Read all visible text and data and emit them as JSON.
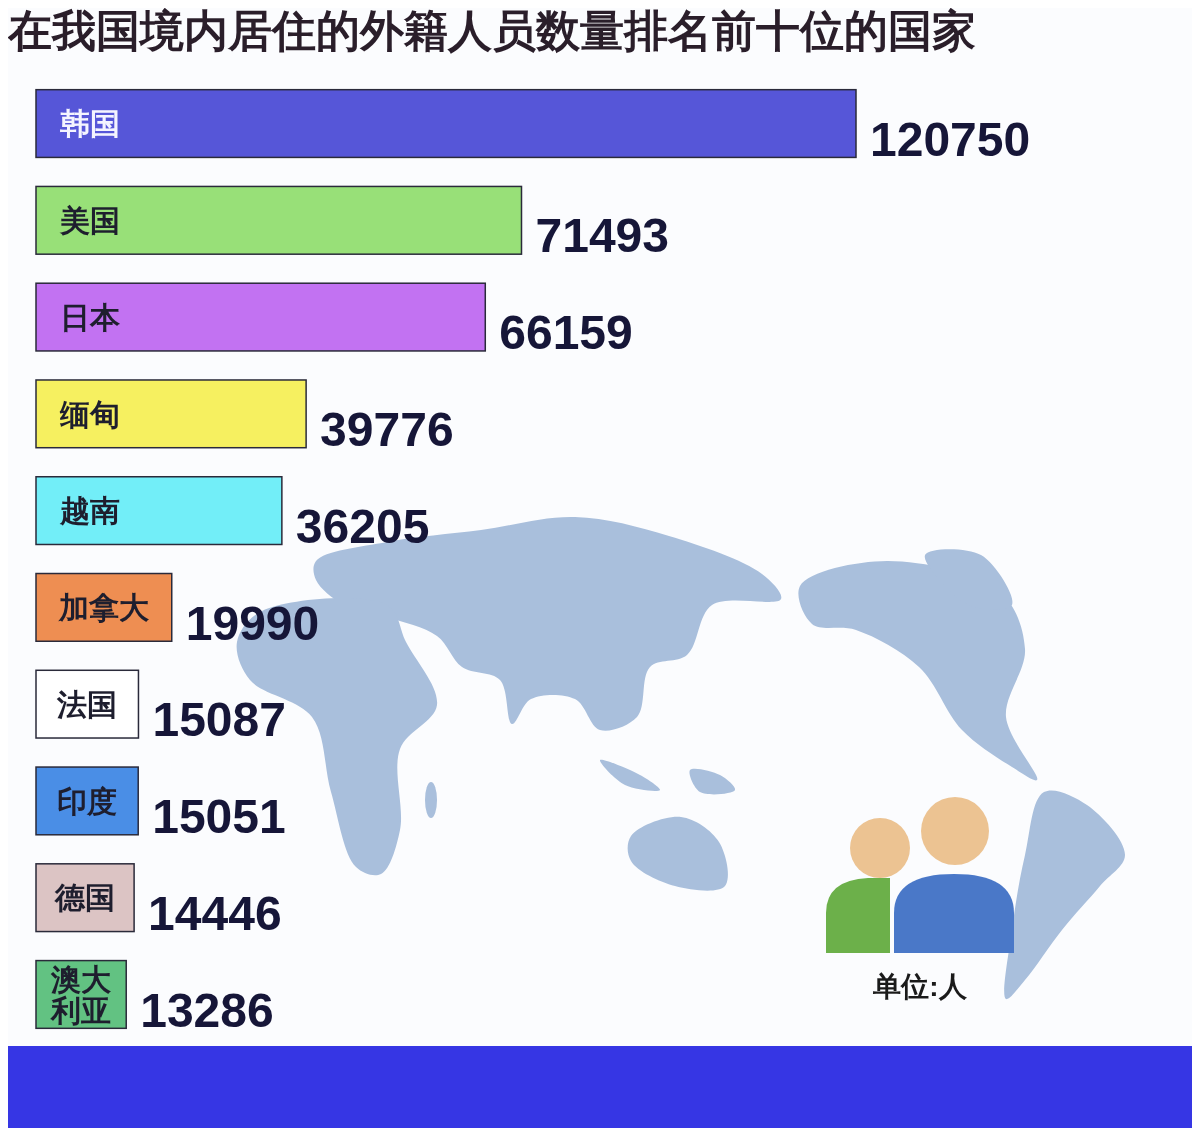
{
  "chart_data": {
    "type": "bar",
    "orientation": "horizontal",
    "title": "在我国境内居住的外籍人员数量排名前十位的国家",
    "categories": [
      "韩国",
      "美国",
      "日本",
      "缅甸",
      "越南",
      "加拿大",
      "法国",
      "印度",
      "德国",
      "澳大利亚"
    ],
    "values": [
      120750,
      71493,
      66159,
      39776,
      36205,
      19990,
      15087,
      15051,
      14446,
      13286
    ],
    "colors": [
      "#5656d8",
      "#98e078",
      "#c272f2",
      "#f6f060",
      "#72eef8",
      "#ee8e52",
      "#ffffff",
      "#4a8ee6",
      "#dcc4c4",
      "#62c282"
    ],
    "data_labels": true,
    "annotations": [
      "单位:人"
    ]
  }
}
